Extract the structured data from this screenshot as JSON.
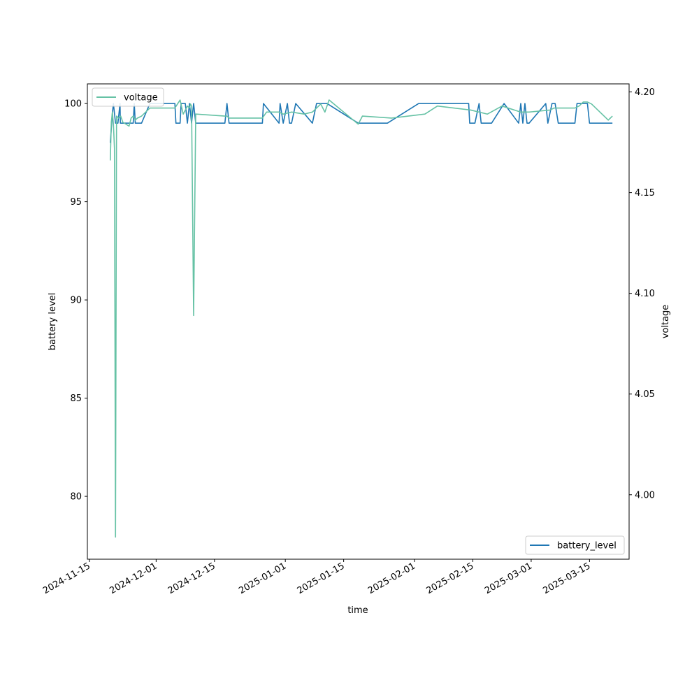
{
  "chart_data": {
    "type": "line",
    "title": "",
    "xlabel": "time",
    "ylabel": "battery level",
    "y2label": "voltage",
    "xlim": [
      "2024-11-14T12:00",
      "2025-03-24T12:00"
    ],
    "ylim": [
      76.8,
      101.0
    ],
    "y2lim": [
      3.968,
      4.204
    ],
    "grid": false,
    "x_ticks": [
      "2024-11-15",
      "2024-12-01",
      "2024-12-15",
      "2025-01-01",
      "2025-01-15",
      "2025-02-01",
      "2025-02-15",
      "2025-03-01",
      "2025-03-15"
    ],
    "y_ticks": [
      80,
      85,
      90,
      95,
      100
    ],
    "y2_ticks": [
      "4.00",
      "4.05",
      "4.10",
      "4.15",
      "4.20"
    ],
    "legends": [
      {
        "entry": "voltage",
        "placement": "upper-left",
        "color": "#66c2a5"
      },
      {
        "entry": "battery_level",
        "placement": "lower-right",
        "color": "#1f77b4"
      }
    ],
    "series": [
      {
        "name": "battery_level",
        "axis": "left",
        "color": "#1f77b4",
        "x": [
          "2024-11-20T00:00",
          "2024-11-20T12:00",
          "2024-11-20T18:00",
          "2024-11-21T06:00",
          "2024-11-21T10:00",
          "2024-11-21T12:00",
          "2024-11-21T20:00",
          "2024-11-22T08:00",
          "2024-11-22T10:00",
          "2024-11-22T14:00",
          "2024-11-22T18:00",
          "2024-11-23T00:00",
          "2024-11-25T12:00",
          "2024-11-25T18:00",
          "2024-11-26T00:00",
          "2024-11-27T12:00",
          "2024-11-29T12:00",
          "2024-12-05T12:00",
          "2024-12-05T18:00",
          "2024-12-06T18:00",
          "2024-12-07T00:00",
          "2024-12-08T00:00",
          "2024-12-08T12:00",
          "2024-12-09T00:00",
          "2024-12-09T12:00",
          "2024-12-10T00:00",
          "2024-12-10T12:00",
          "2024-12-17T12:00",
          "2024-12-18T00:00",
          "2024-12-18T12:00",
          "2024-12-26T12:00",
          "2024-12-26T18:00",
          "2024-12-30T12:00",
          "2024-12-30T18:00",
          "2024-12-31T12:00",
          "2025-01-01T12:00",
          "2025-01-02T00:00",
          "2025-01-02T12:00",
          "2025-01-03T12:00",
          "2025-01-07T12:00",
          "2025-01-08T12:00",
          "2025-01-10T00:00",
          "2025-01-11T00:00",
          "2025-01-18T12:00",
          "2025-01-25T12:00",
          "2025-02-02T00:00",
          "2025-02-14T00:00",
          "2025-02-14T06:00",
          "2025-02-15T12:00",
          "2025-02-16T12:00",
          "2025-02-17T00:00",
          "2025-02-19T12:00",
          "2025-02-22T12:00",
          "2025-02-26T00:00",
          "2025-02-26T12:00",
          "2025-02-27T00:00",
          "2025-02-27T12:00",
          "2025-02-28T00:00",
          "2025-02-28T12:00",
          "2025-03-04T12:00",
          "2025-03-05T00:00",
          "2025-03-06T00:00",
          "2025-03-06T18:00",
          "2025-03-07T12:00",
          "2025-03-08T00:00",
          "2025-03-11T12:00",
          "2025-03-12T00:00",
          "2025-03-14T12:00",
          "2025-03-15T00:00",
          "2025-03-20T12:00"
        ],
        "y": [
          98,
          99.5,
          100,
          99,
          99,
          99,
          99,
          100,
          99,
          99,
          99,
          99,
          99,
          100,
          99,
          99,
          100,
          100,
          99,
          99,
          100,
          100,
          99,
          100,
          99,
          100,
          99,
          99,
          100,
          99,
          99,
          100,
          99,
          100,
          99,
          100,
          99,
          99,
          100,
          99,
          100,
          100,
          100,
          99,
          99,
          100,
          100,
          99,
          99,
          100,
          99,
          99,
          100,
          99,
          100,
          99,
          100,
          99,
          99,
          100,
          99,
          100,
          100,
          99,
          99,
          99,
          100,
          100,
          99,
          99
        ]
      },
      {
        "name": "voltage",
        "axis": "right",
        "color": "#66c2a5",
        "x": [
          "2024-11-20T00:00",
          "2024-11-20T06:00",
          "2024-11-20T12:00",
          "2024-11-20T18:00",
          "2024-11-21T00:00",
          "2024-11-21T06:00",
          "2024-11-21T12:00",
          "2024-11-22T00:00",
          "2024-11-22T12:00",
          "2024-11-23T00:00",
          "2024-11-24T12:00",
          "2024-11-25T00:00",
          "2024-11-25T12:00",
          "2024-11-26T00:00",
          "2024-11-26T12:00",
          "2024-11-27T12:00",
          "2024-11-29T12:00",
          "2024-12-05T00:00",
          "2024-12-05T12:00",
          "2024-12-06T18:00",
          "2024-12-07T12:00",
          "2024-12-08T12:00",
          "2024-12-09T00:00",
          "2024-12-09T06:00",
          "2024-12-09T12:00",
          "2024-12-10T00:00",
          "2024-12-10T12:00",
          "2024-12-17T12:00",
          "2024-12-18T00:00",
          "2024-12-18T12:00",
          "2024-12-26T12:00",
          "2024-12-27T12:00",
          "2024-12-30T12:00",
          "2024-12-31T12:00",
          "2025-01-02T12:00",
          "2025-01-05T12:00",
          "2025-01-07T12:00",
          "2025-01-09T12:00",
          "2025-01-10T12:00",
          "2025-01-11T12:00",
          "2025-01-18T12:00",
          "2025-01-19T12:00",
          "2025-01-26T12:00",
          "2025-02-03T12:00",
          "2025-02-06T12:00",
          "2025-02-14T12:00",
          "2025-02-18T12:00",
          "2025-02-22T00:00",
          "2025-02-26T12:00",
          "2025-02-27T12:00",
          "2025-02-28T12:00",
          "2025-03-05T12:00",
          "2025-03-06T12:00",
          "2025-03-07T12:00",
          "2025-03-11T12:00",
          "2025-03-12T12:00",
          "2025-03-13T12:00",
          "2025-03-14T12:00",
          "2025-03-15T12:00",
          "2025-03-19T12:00",
          "2025-03-20T12:00"
        ],
        "y": [
          4.166,
          4.185,
          4.19,
          4.184,
          4.172,
          3.979,
          4.188,
          4.187,
          4.188,
          4.185,
          4.183,
          4.187,
          4.188,
          4.186,
          4.187,
          4.188,
          4.192,
          4.192,
          4.192,
          4.196,
          4.189,
          4.193,
          4.192,
          4.194,
          4.193,
          4.089,
          4.189,
          4.188,
          4.188,
          4.187,
          4.187,
          4.19,
          4.19,
          4.189,
          4.19,
          4.189,
          4.19,
          4.194,
          4.19,
          4.196,
          4.184,
          4.188,
          4.187,
          4.189,
          4.193,
          4.191,
          4.189,
          4.193,
          4.19,
          4.19,
          4.19,
          4.191,
          4.192,
          4.192,
          4.192,
          4.193,
          4.195,
          4.195,
          4.194,
          4.186,
          4.188
        ]
      }
    ]
  }
}
